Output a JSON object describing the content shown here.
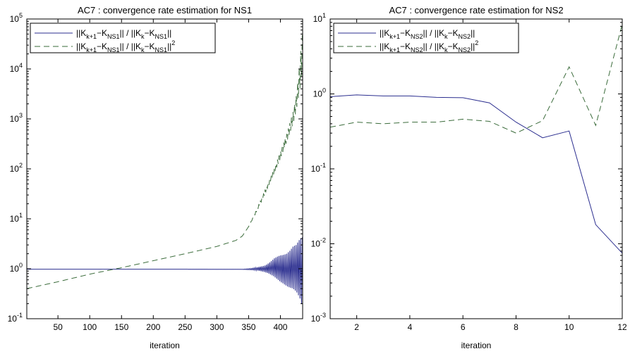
{
  "chart_data": [
    {
      "type": "line",
      "title": "AC7 : convergence rate estimation for NS1",
      "xlabel": "iteration",
      "ylabel": "",
      "xlim": [
        1,
        435
      ],
      "ylim": [
        0.1,
        100000
      ],
      "yscale": "log",
      "grid": false,
      "legend_position": "top-left",
      "x_ticks": [
        "50",
        "100",
        "150",
        "200",
        "250",
        "300",
        "350",
        "400"
      ],
      "y_ticks": [
        {
          "base": "10",
          "exp": "-1"
        },
        {
          "base": "10",
          "exp": "0"
        },
        {
          "base": "10",
          "exp": "1"
        },
        {
          "base": "10",
          "exp": "2"
        },
        {
          "base": "10",
          "exp": "3"
        },
        {
          "base": "10",
          "exp": "4"
        },
        {
          "base": "10",
          "exp": "5"
        }
      ],
      "series": [
        {
          "legend": [
            {
              "t": "||K",
              "s": ""
            },
            {
              "t": "k+1",
              "s": "sub"
            },
            {
              "t": "−K",
              "s": ""
            },
            {
              "t": "NS1",
              "s": "sub"
            },
            {
              "t": "|| / ||K",
              "s": ""
            },
            {
              "t": "k",
              "s": "sub"
            },
            {
              "t": "−K",
              "s": ""
            },
            {
              "t": "NS1",
              "s": "sub"
            },
            {
              "t": "||",
              "s": ""
            }
          ],
          "color": "#2b2e8f",
          "dash": "solid",
          "x": [
            1,
            50,
            100,
            150,
            200,
            250,
            300,
            340,
            355,
            365,
            375,
            380,
            385,
            390,
            395,
            400,
            405,
            410,
            415,
            420,
            425,
            428,
            431,
            433,
            435
          ],
          "values": [
            0.98,
            0.98,
            0.98,
            0.98,
            0.98,
            0.98,
            0.97,
            0.97,
            0.95,
            0.92,
            0.86,
            0.82,
            0.76,
            0.7,
            0.62,
            0.55,
            0.5,
            0.45,
            0.42,
            0.4,
            0.35,
            0.3,
            0.25,
            0.2,
            0.18
          ],
          "oscillation_upper": [
            0.98,
            0.98,
            0.98,
            0.98,
            0.98,
            0.98,
            0.98,
            0.98,
            1.02,
            1.08,
            1.15,
            1.25,
            1.4,
            1.6,
            1.75,
            1.85,
            1.9,
            2.0,
            2.3,
            2.8,
            3.0,
            3.5,
            4.0,
            4.2,
            4.3
          ]
        },
        {
          "legend": [
            {
              "t": "||K",
              "s": ""
            },
            {
              "t": "k+1",
              "s": "sub"
            },
            {
              "t": "−K",
              "s": ""
            },
            {
              "t": "NS1",
              "s": "sub"
            },
            {
              "t": "|| / ||K",
              "s": ""
            },
            {
              "t": "k",
              "s": "sub"
            },
            {
              "t": "−K",
              "s": ""
            },
            {
              "t": "NS1",
              "s": "sub"
            },
            {
              "t": "||",
              "s": ""
            },
            {
              "t": "2",
              "s": "sup"
            }
          ],
          "color": "#3a6b3a",
          "dash": "8,5",
          "x": [
            1,
            50,
            100,
            150,
            200,
            250,
            300,
            330,
            340,
            350,
            360,
            370,
            380,
            390,
            400,
            410,
            420,
            425,
            430,
            435
          ],
          "values": [
            0.4,
            0.55,
            0.78,
            1.05,
            1.45,
            2.0,
            2.8,
            3.7,
            4.5,
            7,
            12,
            22,
            42,
            80,
            160,
            350,
            800,
            1500,
            3500,
            10000
          ],
          "oscillation_upper": [
            0.4,
            0.55,
            0.78,
            1.05,
            1.45,
            2.0,
            2.8,
            3.7,
            4.5,
            7,
            13,
            25,
            50,
            100,
            220,
            500,
            1400,
            3000,
            12000,
            60000
          ]
        }
      ]
    },
    {
      "type": "line",
      "title": "AC7 : convergence rate estimation for NS2",
      "xlabel": "iteration",
      "ylabel": "",
      "xlim": [
        1,
        12
      ],
      "ylim": [
        0.001,
        10
      ],
      "yscale": "log",
      "grid": false,
      "legend_position": "top-left",
      "x_ticks": [
        "2",
        "4",
        "6",
        "8",
        "10",
        "12"
      ],
      "y_ticks": [
        {
          "base": "10",
          "exp": "-3"
        },
        {
          "base": "10",
          "exp": "-2"
        },
        {
          "base": "10",
          "exp": "-1"
        },
        {
          "base": "10",
          "exp": "0"
        },
        {
          "base": "10",
          "exp": "1"
        }
      ],
      "series": [
        {
          "legend": [
            {
              "t": "||K",
              "s": ""
            },
            {
              "t": "k+1",
              "s": "sub"
            },
            {
              "t": "−K",
              "s": ""
            },
            {
              "t": "NS2",
              "s": "sub"
            },
            {
              "t": "|| / ||K",
              "s": ""
            },
            {
              "t": "k",
              "s": "sub"
            },
            {
              "t": "−K",
              "s": ""
            },
            {
              "t": "NS2",
              "s": "sub"
            },
            {
              "t": "||",
              "s": ""
            }
          ],
          "color": "#2b2e8f",
          "dash": "solid",
          "x": [
            1,
            2,
            3,
            4,
            5,
            6,
            7,
            8,
            9,
            10,
            11,
            12
          ],
          "values": [
            0.92,
            0.97,
            0.94,
            0.94,
            0.9,
            0.89,
            0.76,
            0.42,
            0.26,
            0.32,
            0.018,
            0.0075
          ]
        },
        {
          "legend": [
            {
              "t": "||K",
              "s": ""
            },
            {
              "t": "k+1",
              "s": "sub"
            },
            {
              "t": "−K",
              "s": ""
            },
            {
              "t": "NS2",
              "s": "sub"
            },
            {
              "t": "|| / ||K",
              "s": ""
            },
            {
              "t": "k",
              "s": "sub"
            },
            {
              "t": "−K",
              "s": ""
            },
            {
              "t": "NS2",
              "s": "sub"
            },
            {
              "t": "||",
              "s": ""
            },
            {
              "t": "2",
              "s": "sup"
            }
          ],
          "color": "#3a6b3a",
          "dash": "8,5",
          "x": [
            1,
            2,
            3,
            4,
            5,
            6,
            7,
            8,
            9,
            10,
            11,
            12
          ],
          "values": [
            0.36,
            0.42,
            0.4,
            0.42,
            0.42,
            0.46,
            0.43,
            0.3,
            0.44,
            2.3,
            0.38,
            8.5
          ]
        }
      ]
    }
  ]
}
